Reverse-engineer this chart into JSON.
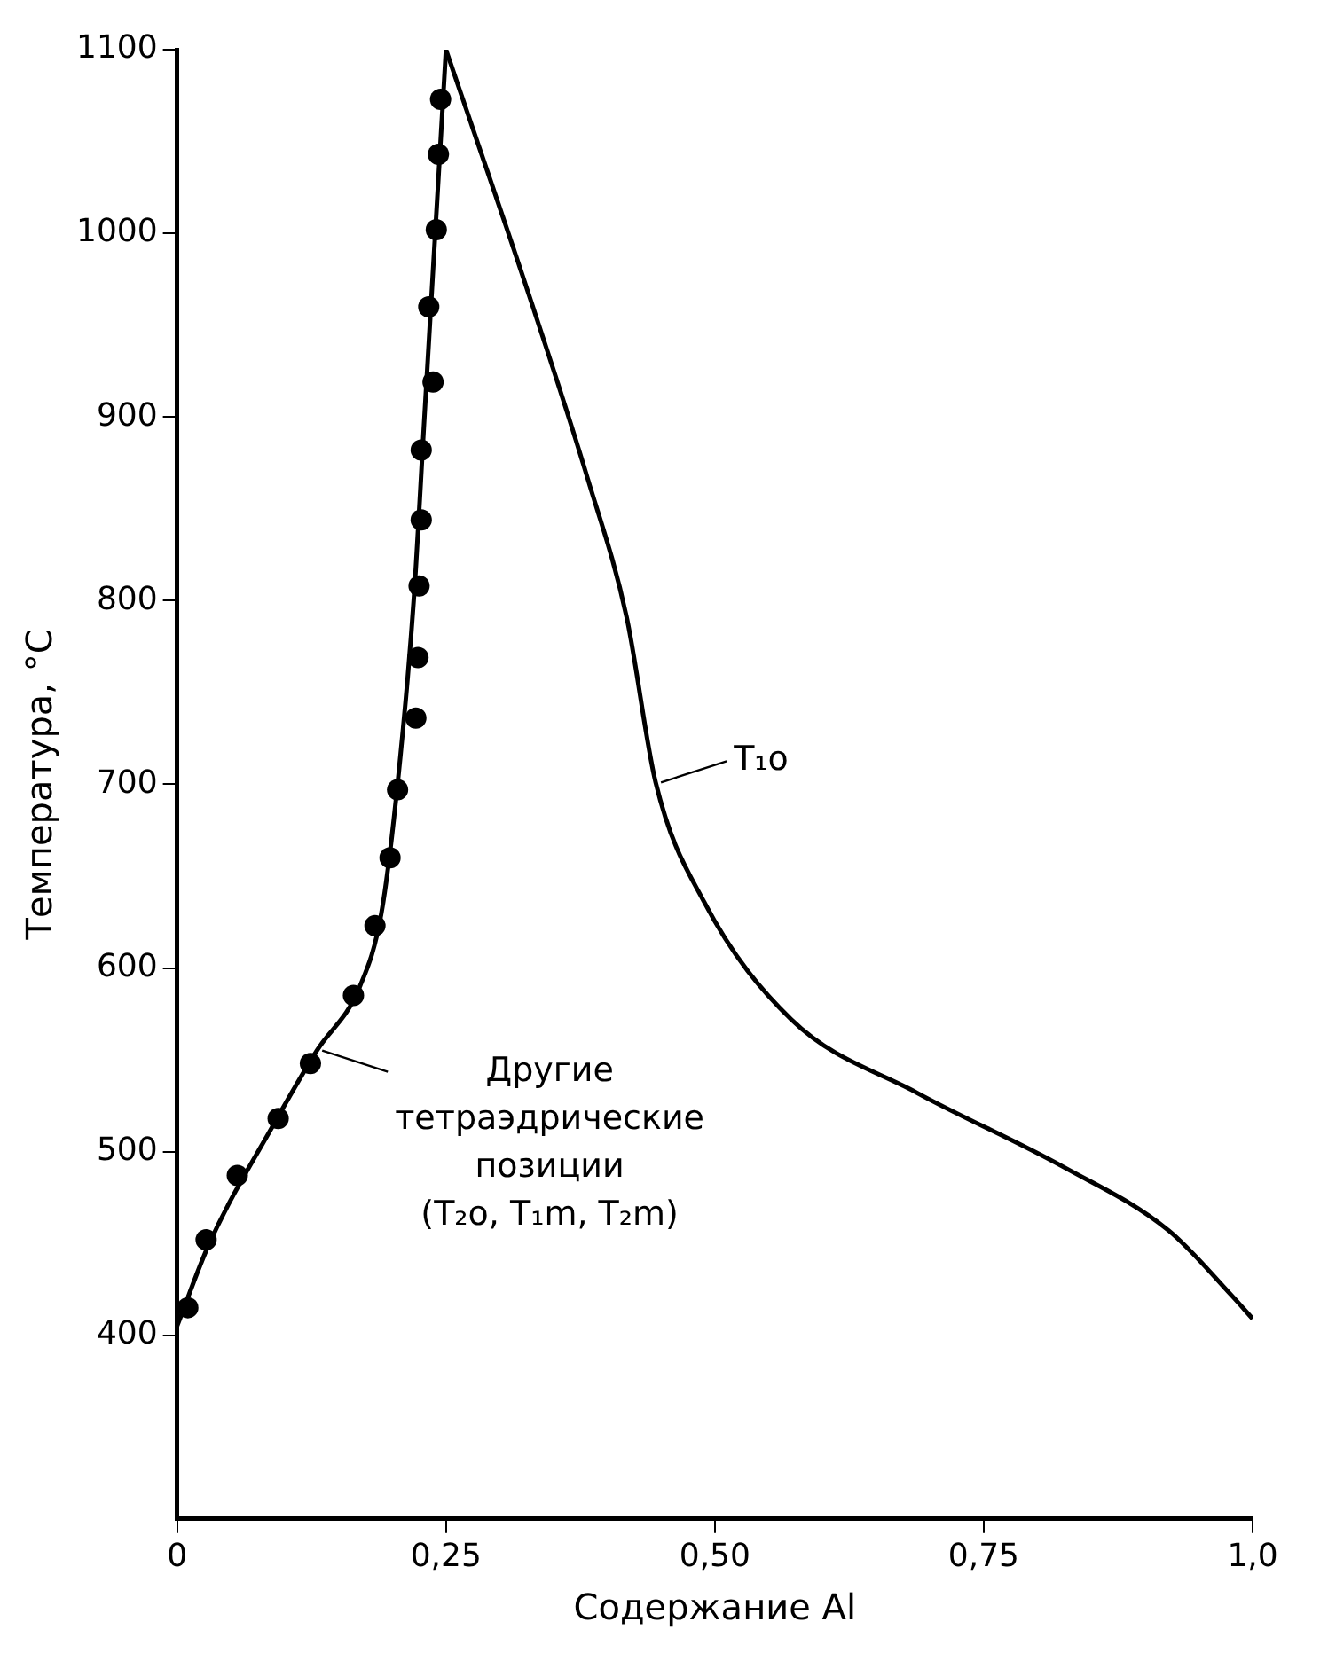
{
  "chart_data": {
    "type": "line",
    "xlabel": "Содержание Al",
    "ylabel": "Температура, °C",
    "xlim": [
      0,
      1
    ],
    "ylim": [
      300,
      1100
    ],
    "xticks": [
      0,
      {
        "value": 0.25,
        "label": "0,25"
      },
      {
        "value": 0.5,
        "label": "0,50"
      },
      {
        "value": 0.75,
        "label": "0,75"
      },
      {
        "value": 1,
        "label": "1,0"
      }
    ],
    "yticks": [
      400,
      500,
      600,
      700,
      800,
      900,
      1000,
      1100
    ],
    "grid": false,
    "legend": false,
    "series": [
      {
        "color": "#000000",
        "marker": "none",
        "x": [
          0,
          0.03,
          0.09,
          0.13,
          0.17,
          0.19,
          0.205,
          0.22,
          0.23,
          0.24,
          0.25
        ],
        "values": [
          405,
          450,
          515,
          555,
          590,
          630,
          700,
          800,
          900,
          1000,
          1100
        ]
      },
      {
        "color": "#000000",
        "marker": "none",
        "x": [
          0.25,
          0.328,
          0.382,
          0.418,
          0.445,
          0.49,
          0.571,
          0.688,
          0.823,
          0.922,
          0.98,
          1.0
        ],
        "values": [
          1100,
          965,
          866,
          791,
          701,
          636,
          572,
          532,
          492,
          457,
          422,
          409
        ]
      },
      {
        "type": "scatter",
        "color": "#000000",
        "marker": "circle",
        "x": [
          0.01,
          0.027,
          0.056,
          0.094,
          0.124,
          0.164,
          0.184,
          0.198,
          0.205,
          0.222,
          0.224,
          0.225,
          0.227,
          0.227,
          0.238,
          0.234,
          0.241,
          0.243,
          0.245
        ],
        "values": [
          415,
          452,
          487,
          518,
          548,
          585,
          623,
          660,
          697,
          736,
          769,
          808,
          844,
          882,
          919,
          960,
          1002,
          1043,
          1073
        ]
      }
    ],
    "annotations": [
      {
        "text": "T₁o",
        "x": 0.445,
        "y": 701
      },
      {
        "text": "Другие\nтетраэдрические\nпозиции\n(T₂o, T₁m, T₂m)",
        "x": 0.13,
        "y": 555
      }
    ]
  }
}
